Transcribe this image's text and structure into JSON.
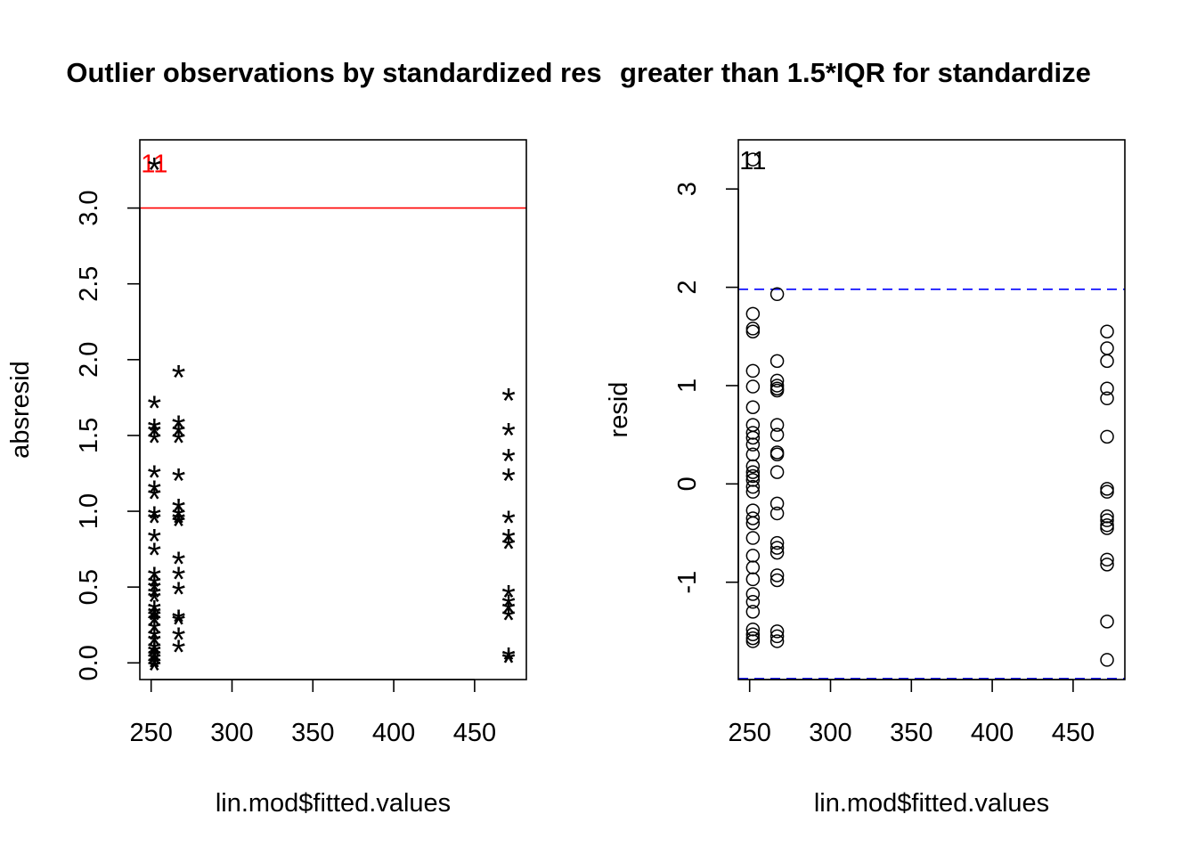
{
  "chart_data": [
    {
      "type": "scatter",
      "title": "Outlier observations by standardized res",
      "xlabel": "lin.mod$fitted.values",
      "ylabel": "absresid",
      "xlim": [
        243,
        482
      ],
      "ylim": [
        -0.11,
        3.45
      ],
      "x_ticks": [
        "250",
        "300",
        "350",
        "400",
        "450"
      ],
      "y_ticks": [
        "0.0",
        "0.5",
        "1.0",
        "1.5",
        "2.0",
        "2.5",
        "3.0"
      ],
      "marker": "*",
      "reference_line": {
        "y": 3.0,
        "color": "#ff0000"
      },
      "outlier_label": {
        "text": "11",
        "x": 252,
        "y": 3.3,
        "color": "#ff0000"
      },
      "points": [
        {
          "x": 252,
          "y": 3.3
        },
        {
          "x": 252,
          "y": 1.73
        },
        {
          "x": 252,
          "y": 1.58
        },
        {
          "x": 252,
          "y": 1.55
        },
        {
          "x": 252,
          "y": 1.5
        },
        {
          "x": 252,
          "y": 1.27
        },
        {
          "x": 252,
          "y": 1.17
        },
        {
          "x": 252,
          "y": 1.13
        },
        {
          "x": 252,
          "y": 1.0
        },
        {
          "x": 252,
          "y": 0.97
        },
        {
          "x": 252,
          "y": 0.85
        },
        {
          "x": 252,
          "y": 0.76
        },
        {
          "x": 252,
          "y": 0.6
        },
        {
          "x": 252,
          "y": 0.55
        },
        {
          "x": 252,
          "y": 0.52
        },
        {
          "x": 252,
          "y": 0.48
        },
        {
          "x": 252,
          "y": 0.45
        },
        {
          "x": 252,
          "y": 0.38
        },
        {
          "x": 252,
          "y": 0.35
        },
        {
          "x": 252,
          "y": 0.33
        },
        {
          "x": 252,
          "y": 0.3
        },
        {
          "x": 252,
          "y": 0.25
        },
        {
          "x": 252,
          "y": 0.2
        },
        {
          "x": 252,
          "y": 0.17
        },
        {
          "x": 252,
          "y": 0.12
        },
        {
          "x": 252,
          "y": 0.1
        },
        {
          "x": 252,
          "y": 0.07
        },
        {
          "x": 252,
          "y": 0.05
        },
        {
          "x": 252,
          "y": 0.02
        },
        {
          "x": 252,
          "y": 0.0
        },
        {
          "x": 267,
          "y": 1.93
        },
        {
          "x": 267,
          "y": 1.6
        },
        {
          "x": 267,
          "y": 1.55
        },
        {
          "x": 267,
          "y": 1.5
        },
        {
          "x": 267,
          "y": 1.25
        },
        {
          "x": 267,
          "y": 1.05
        },
        {
          "x": 267,
          "y": 1.0
        },
        {
          "x": 267,
          "y": 0.97
        },
        {
          "x": 267,
          "y": 0.95
        },
        {
          "x": 267,
          "y": 0.7
        },
        {
          "x": 267,
          "y": 0.6
        },
        {
          "x": 267,
          "y": 0.5
        },
        {
          "x": 267,
          "y": 0.32
        },
        {
          "x": 267,
          "y": 0.3
        },
        {
          "x": 267,
          "y": 0.2
        },
        {
          "x": 267,
          "y": 0.12
        },
        {
          "x": 471,
          "y": 1.78
        },
        {
          "x": 471,
          "y": 1.55
        },
        {
          "x": 471,
          "y": 1.38
        },
        {
          "x": 471,
          "y": 1.25
        },
        {
          "x": 471,
          "y": 0.97
        },
        {
          "x": 471,
          "y": 0.85
        },
        {
          "x": 471,
          "y": 0.8
        },
        {
          "x": 471,
          "y": 0.48
        },
        {
          "x": 471,
          "y": 0.42
        },
        {
          "x": 471,
          "y": 0.38
        },
        {
          "x": 471,
          "y": 0.33
        },
        {
          "x": 471,
          "y": 0.07
        },
        {
          "x": 471,
          "y": 0.05
        }
      ]
    },
    {
      "type": "scatter",
      "title": "greater than 1.5*IQR for standardize",
      "xlabel": "lin.mod$fitted.values",
      "ylabel": "resid",
      "xlim": [
        243,
        482
      ],
      "ylim": [
        -1.99,
        3.5
      ],
      "x_ticks": [
        "250",
        "300",
        "350",
        "400",
        "450"
      ],
      "y_ticks": [
        "-1",
        "0",
        "1",
        "2",
        "3"
      ],
      "marker": "circle",
      "reference_lines": [
        {
          "y": 1.98,
          "color": "#0000ff",
          "style": "dashed"
        },
        {
          "y": -1.98,
          "color": "#0000ff",
          "style": "dashed"
        }
      ],
      "outlier_label": {
        "text": "11",
        "x": 252,
        "y": 3.3,
        "color": "#000000"
      },
      "points": [
        {
          "x": 252,
          "y": 3.3
        },
        {
          "x": 252,
          "y": 1.73
        },
        {
          "x": 252,
          "y": 1.58
        },
        {
          "x": 252,
          "y": 1.55
        },
        {
          "x": 252,
          "y": 1.15
        },
        {
          "x": 252,
          "y": 0.99
        },
        {
          "x": 252,
          "y": 0.78
        },
        {
          "x": 252,
          "y": 0.6
        },
        {
          "x": 252,
          "y": 0.52
        },
        {
          "x": 252,
          "y": 0.47
        },
        {
          "x": 252,
          "y": 0.4
        },
        {
          "x": 252,
          "y": 0.3
        },
        {
          "x": 252,
          "y": 0.18
        },
        {
          "x": 252,
          "y": 0.12
        },
        {
          "x": 252,
          "y": 0.08
        },
        {
          "x": 252,
          "y": 0.04
        },
        {
          "x": 252,
          "y": -0.03
        },
        {
          "x": 252,
          "y": -0.08
        },
        {
          "x": 252,
          "y": -0.27
        },
        {
          "x": 252,
          "y": -0.35
        },
        {
          "x": 252,
          "y": -0.4
        },
        {
          "x": 252,
          "y": -0.55
        },
        {
          "x": 252,
          "y": -0.73
        },
        {
          "x": 252,
          "y": -0.85
        },
        {
          "x": 252,
          "y": -0.97
        },
        {
          "x": 252,
          "y": -1.12
        },
        {
          "x": 252,
          "y": -1.2
        },
        {
          "x": 252,
          "y": -1.3
        },
        {
          "x": 252,
          "y": -1.48
        },
        {
          "x": 252,
          "y": -1.53
        },
        {
          "x": 252,
          "y": -1.57
        },
        {
          "x": 252,
          "y": -1.6
        },
        {
          "x": 267,
          "y": 1.93
        },
        {
          "x": 267,
          "y": 1.25
        },
        {
          "x": 267,
          "y": 1.05
        },
        {
          "x": 267,
          "y": 1.0
        },
        {
          "x": 267,
          "y": 0.97
        },
        {
          "x": 267,
          "y": 0.95
        },
        {
          "x": 267,
          "y": 0.6
        },
        {
          "x": 267,
          "y": 0.5
        },
        {
          "x": 267,
          "y": 0.32
        },
        {
          "x": 267,
          "y": 0.3
        },
        {
          "x": 267,
          "y": 0.12
        },
        {
          "x": 267,
          "y": -0.2
        },
        {
          "x": 267,
          "y": -0.3
        },
        {
          "x": 267,
          "y": -0.6
        },
        {
          "x": 267,
          "y": -0.65
        },
        {
          "x": 267,
          "y": -0.7
        },
        {
          "x": 267,
          "y": -0.93
        },
        {
          "x": 267,
          "y": -0.98
        },
        {
          "x": 267,
          "y": -1.5
        },
        {
          "x": 267,
          "y": -1.55
        },
        {
          "x": 267,
          "y": -1.6
        },
        {
          "x": 471,
          "y": 1.55
        },
        {
          "x": 471,
          "y": 1.38
        },
        {
          "x": 471,
          "y": 1.25
        },
        {
          "x": 471,
          "y": 0.97
        },
        {
          "x": 471,
          "y": 0.87
        },
        {
          "x": 471,
          "y": 0.48
        },
        {
          "x": 471,
          "y": -0.05
        },
        {
          "x": 471,
          "y": -0.08
        },
        {
          "x": 471,
          "y": -0.33
        },
        {
          "x": 471,
          "y": -0.37
        },
        {
          "x": 471,
          "y": -0.42
        },
        {
          "x": 471,
          "y": -0.45
        },
        {
          "x": 471,
          "y": -0.77
        },
        {
          "x": 471,
          "y": -0.82
        },
        {
          "x": 471,
          "y": -1.4
        },
        {
          "x": 471,
          "y": -1.79
        }
      ]
    }
  ]
}
